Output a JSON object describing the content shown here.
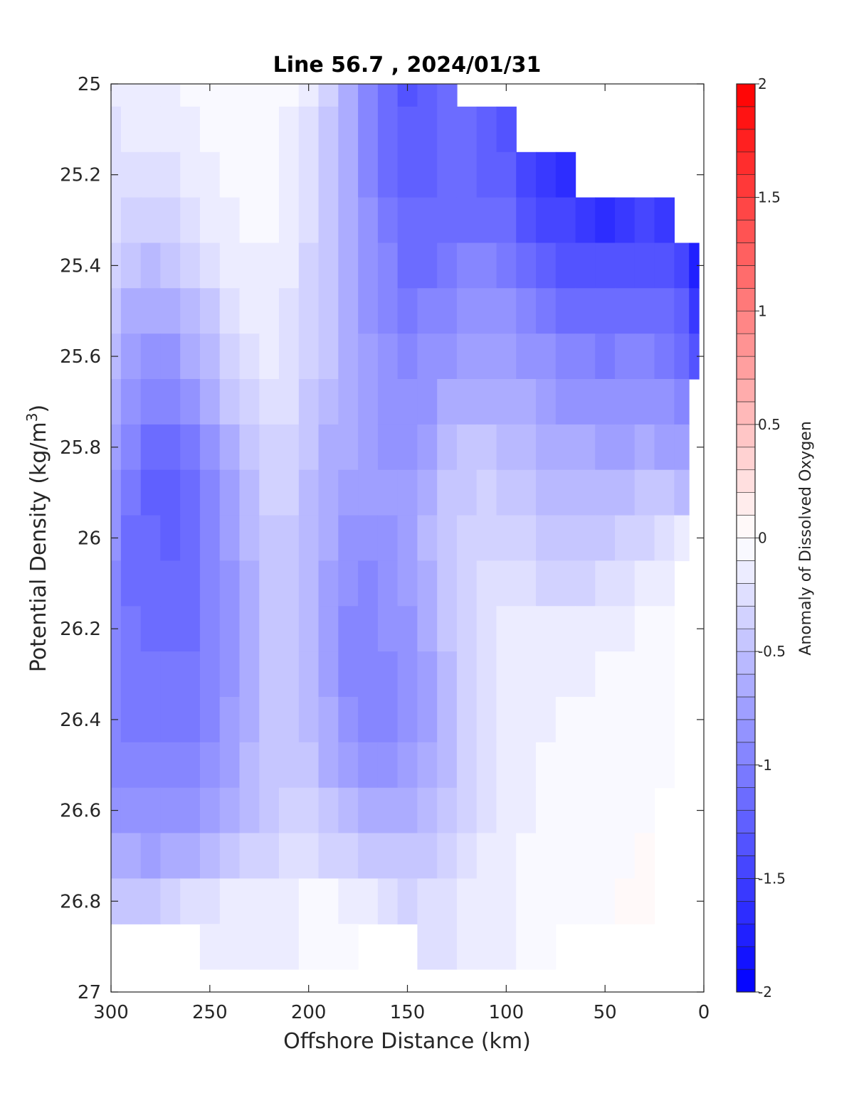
{
  "chart_data": {
    "type": "heatmap",
    "subtype": "filled-contour section",
    "title": "Line 56.7 , 2024/01/31",
    "xlabel": "Offshore Distance (km)",
    "ylabel": "Potential Density (kg/m^3)",
    "ylabel_parts": {
      "base": "Potential Density (kg/m",
      "sup": "3",
      "end": ")"
    },
    "xlim": [
      300,
      0
    ],
    "x_reversed": true,
    "ylim": [
      25,
      27
    ],
    "y_reversed": true,
    "x_ticks": [
      300,
      250,
      200,
      150,
      100,
      50,
      0
    ],
    "x_tick_labels": [
      "300",
      "250",
      "200",
      "150",
      "100",
      "50",
      "0"
    ],
    "y_ticks": [
      25,
      25.2,
      25.4,
      25.6,
      25.8,
      26,
      26.2,
      26.4,
      26.6,
      26.8,
      27
    ],
    "y_tick_labels": [
      "25",
      "25.2",
      "25.4",
      "25.6",
      "25.8",
      "26",
      "26.2",
      "26.4",
      "26.6",
      "26.8",
      "27"
    ],
    "colorbar": {
      "label": "Anomaly of Dissolved Oxygen",
      "range": [
        -2,
        2
      ],
      "levels": 40,
      "ticks": [
        -2,
        -1.5,
        -1,
        -0.5,
        0,
        0.5,
        1,
        1.5,
        2
      ],
      "tick_labels": [
        "-2",
        "-1.5",
        "-1",
        "-0.5",
        "0",
        "0.5",
        "1",
        "1.5",
        "2"
      ],
      "neg_color": "#0000ff",
      "zero_color": "#ffffff",
      "pos_color": "#ff0000"
    },
    "grid": false,
    "stations_km": [
      300,
      290,
      280,
      270,
      260,
      250,
      240,
      230,
      220,
      210,
      200,
      190,
      180,
      170,
      160,
      150,
      140,
      130,
      120,
      110,
      100,
      90,
      80,
      70,
      60,
      50,
      40,
      30,
      20,
      10,
      5
    ],
    "density_levels": [
      25.0,
      25.1,
      25.2,
      25.3,
      25.4,
      25.5,
      25.6,
      25.7,
      25.8,
      25.9,
      26.0,
      26.1,
      26.2,
      26.3,
      26.4,
      26.5,
      26.6,
      26.7,
      26.8,
      26.9
    ],
    "anomaly_grid": [
      [
        -0.2,
        -0.17,
        -0.15,
        -0.12,
        -0.08,
        -0.05,
        -0.02,
        -0.02,
        -0.04,
        -0.08,
        -0.18,
        -0.4,
        -0.7,
        -0.95,
        -1.18,
        -1.3,
        -1.28,
        -1.15,
        null,
        null,
        null,
        null,
        null,
        null,
        null,
        null,
        null,
        null,
        null,
        null,
        null
      ],
      [
        -0.22,
        -0.2,
        -0.18,
        -0.15,
        -0.1,
        -0.05,
        -0.02,
        -0.02,
        -0.05,
        -0.12,
        -0.25,
        -0.45,
        -0.7,
        -0.95,
        -1.15,
        -1.28,
        -1.28,
        -1.18,
        -1.2,
        -1.28,
        -1.35,
        null,
        null,
        null,
        null,
        null,
        null,
        null,
        null,
        null,
        null
      ],
      [
        -0.25,
        -0.28,
        -0.28,
        -0.25,
        -0.18,
        -0.1,
        -0.04,
        -0.02,
        -0.06,
        -0.15,
        -0.28,
        -0.45,
        -0.68,
        -0.92,
        -1.1,
        -1.22,
        -1.22,
        -1.15,
        -1.15,
        -1.22,
        -1.28,
        -1.45,
        -1.55,
        -1.6,
        null,
        null,
        null,
        null,
        null,
        null,
        null
      ],
      [
        -0.3,
        -0.38,
        -0.4,
        -0.35,
        -0.3,
        -0.2,
        -0.1,
        -0.05,
        -0.08,
        -0.18,
        -0.3,
        -0.45,
        -0.65,
        -0.88,
        -1.05,
        -1.18,
        -1.2,
        -1.12,
        -1.1,
        -1.12,
        -1.18,
        -1.3,
        -1.45,
        -1.5,
        -1.58,
        -1.62,
        -1.55,
        -1.45,
        -1.55,
        null,
        null
      ],
      [
        -0.38,
        -0.48,
        -0.52,
        -0.48,
        -0.4,
        -0.3,
        -0.18,
        -0.1,
        -0.1,
        -0.2,
        -0.32,
        -0.45,
        -0.62,
        -0.85,
        -1.0,
        -1.1,
        -1.1,
        -1.05,
        -1.0,
        -0.98,
        -1.02,
        -1.12,
        -1.25,
        -1.3,
        -1.35,
        -1.4,
        -1.38,
        -1.3,
        -1.35,
        -1.45,
        -1.75
      ],
      [
        -0.45,
        -0.6,
        -0.68,
        -0.65,
        -0.55,
        -0.42,
        -0.28,
        -0.15,
        -0.14,
        -0.22,
        -0.35,
        -0.48,
        -0.62,
        -0.82,
        -0.95,
        -1.05,
        -1.0,
        -0.92,
        -0.88,
        -0.85,
        -0.88,
        -0.95,
        -1.05,
        -1.1,
        -1.15,
        -1.2,
        -1.18,
        -1.15,
        -1.18,
        -1.28,
        -1.55
      ],
      [
        -0.55,
        -0.75,
        -0.85,
        -0.82,
        -0.7,
        -0.55,
        -0.38,
        -0.25,
        -0.2,
        -0.25,
        -0.38,
        -0.5,
        -0.62,
        -0.78,
        -0.9,
        -0.98,
        -0.9,
        -0.8,
        -0.75,
        -0.72,
        -0.75,
        -0.8,
        -0.88,
        -0.92,
        -0.98,
        -1.02,
        -1.0,
        -0.98,
        -1.02,
        -1.1,
        -1.35
      ],
      [
        -0.65,
        -0.88,
        -1.0,
        -1.0,
        -0.88,
        -0.7,
        -0.5,
        -0.35,
        -0.25,
        -0.3,
        -0.42,
        -0.55,
        -0.65,
        -0.75,
        -0.85,
        -0.9,
        -0.8,
        -0.68,
        -0.62,
        -0.6,
        -0.62,
        -0.68,
        -0.75,
        -0.8,
        -0.85,
        -0.88,
        -0.88,
        -0.85,
        -0.88,
        -0.92,
        null
      ],
      [
        -0.75,
        -1.0,
        -1.12,
        -1.15,
        -1.02,
        -0.82,
        -0.62,
        -0.45,
        -0.32,
        -0.35,
        -0.48,
        -0.6,
        -0.7,
        -0.75,
        -0.8,
        -0.82,
        -0.72,
        -0.58,
        -0.5,
        -0.48,
        -0.52,
        -0.58,
        -0.62,
        -0.65,
        -0.7,
        -0.72,
        -0.72,
        -0.7,
        -0.72,
        -0.75,
        null
      ],
      [
        -0.82,
        -1.08,
        -1.22,
        -1.25,
        -1.12,
        -0.92,
        -0.72,
        -0.52,
        -0.4,
        -0.4,
        -0.52,
        -0.65,
        -0.75,
        -0.78,
        -0.78,
        -0.75,
        -0.62,
        -0.5,
        -0.42,
        -0.38,
        -0.42,
        -0.48,
        -0.52,
        -0.55,
        -0.58,
        -0.58,
        -0.55,
        -0.5,
        -0.5,
        -0.52,
        null
      ],
      [
        -0.88,
        -1.1,
        -1.2,
        -1.22,
        -1.15,
        -0.98,
        -0.78,
        -0.58,
        -0.45,
        -0.45,
        -0.55,
        -0.7,
        -0.82,
        -0.85,
        -0.8,
        -0.72,
        -0.58,
        -0.45,
        -0.35,
        -0.32,
        -0.35,
        -0.4,
        -0.42,
        -0.45,
        -0.45,
        -0.42,
        -0.38,
        -0.32,
        -0.3,
        -0.15,
        null
      ],
      [
        -0.92,
        -1.1,
        -1.15,
        -1.18,
        -1.15,
        -1.0,
        -0.8,
        -0.6,
        -0.48,
        -0.48,
        -0.58,
        -0.75,
        -0.88,
        -0.92,
        -0.85,
        -0.75,
        -0.62,
        -0.45,
        -0.32,
        -0.28,
        -0.28,
        -0.3,
        -0.32,
        -0.35,
        -0.32,
        -0.28,
        -0.25,
        -0.2,
        -0.12,
        null,
        null
      ],
      [
        -0.95,
        -1.08,
        -1.1,
        -1.12,
        -1.12,
        -1.0,
        -0.82,
        -0.62,
        -0.5,
        -0.48,
        -0.58,
        -0.78,
        -0.92,
        -0.98,
        -0.9,
        -0.8,
        -0.65,
        -0.48,
        -0.32,
        -0.22,
        -0.18,
        -0.18,
        -0.2,
        -0.2,
        -0.18,
        -0.15,
        -0.12,
        -0.08,
        -0.05,
        null,
        null
      ],
      [
        -0.98,
        -1.05,
        -1.05,
        -1.08,
        -1.08,
        -0.98,
        -0.8,
        -0.6,
        -0.5,
        -0.48,
        -0.58,
        -0.75,
        -0.92,
        -1.0,
        -0.95,
        -0.88,
        -0.72,
        -0.52,
        -0.35,
        -0.22,
        -0.15,
        -0.12,
        -0.12,
        -0.12,
        -0.1,
        -0.08,
        -0.05,
        -0.03,
        -0.02,
        null,
        null
      ],
      [
        -0.98,
        -1.02,
        -1.02,
        -1.05,
        -1.05,
        -0.95,
        -0.78,
        -0.6,
        -0.5,
        -0.48,
        -0.55,
        -0.7,
        -0.85,
        -0.95,
        -0.92,
        -0.88,
        -0.75,
        -0.55,
        -0.38,
        -0.25,
        -0.18,
        -0.12,
        -0.1,
        -0.08,
        -0.06,
        -0.05,
        -0.03,
        -0.02,
        -0.01,
        null,
        null
      ],
      [
        -0.92,
        -0.95,
        -0.98,
        -1.0,
        -0.98,
        -0.88,
        -0.72,
        -0.58,
        -0.48,
        -0.45,
        -0.5,
        -0.62,
        -0.75,
        -0.85,
        -0.82,
        -0.78,
        -0.68,
        -0.52,
        -0.38,
        -0.25,
        -0.18,
        -0.12,
        -0.08,
        -0.06,
        -0.05,
        -0.03,
        -0.02,
        -0.01,
        -0.01,
        null,
        null
      ],
      [
        -0.82,
        -0.85,
        -0.88,
        -0.88,
        -0.85,
        -0.78,
        -0.65,
        -0.52,
        -0.42,
        -0.38,
        -0.4,
        -0.5,
        -0.58,
        -0.65,
        -0.65,
        -0.62,
        -0.55,
        -0.42,
        -0.32,
        -0.22,
        -0.15,
        -0.1,
        -0.06,
        -0.05,
        -0.03,
        -0.02,
        -0.01,
        -0.01,
        null,
        null,
        null
      ],
      [
        -0.68,
        -0.7,
        -0.72,
        -0.7,
        -0.65,
        -0.58,
        -0.48,
        -0.4,
        -0.32,
        -0.28,
        -0.28,
        -0.32,
        -0.38,
        -0.45,
        -0.48,
        -0.48,
        -0.42,
        -0.35,
        -0.28,
        -0.2,
        -0.12,
        -0.08,
        -0.05,
        -0.03,
        -0.02,
        -0.01,
        -0.01,
        0.0,
        null,
        null,
        null
      ],
      [
        -0.5,
        -0.48,
        -0.42,
        -0.35,
        -0.28,
        -0.22,
        -0.18,
        -0.15,
        -0.12,
        -0.1,
        -0.08,
        -0.08,
        -0.12,
        -0.2,
        -0.28,
        -0.32,
        -0.3,
        -0.25,
        -0.2,
        -0.15,
        -0.1,
        -0.06,
        -0.03,
        -0.02,
        -0.01,
        -0.01,
        0.0,
        0.0,
        null,
        null,
        null
      ],
      [
        null,
        null,
        null,
        null,
        null,
        -0.2,
        -0.18,
        -0.15,
        -0.12,
        -0.1,
        -0.06,
        -0.05,
        -0.08,
        null,
        null,
        null,
        -0.3,
        -0.25,
        -0.2,
        -0.15,
        -0.1,
        -0.05,
        -0.02,
        null,
        null,
        null,
        null,
        null,
        null,
        null,
        null
      ]
    ]
  }
}
